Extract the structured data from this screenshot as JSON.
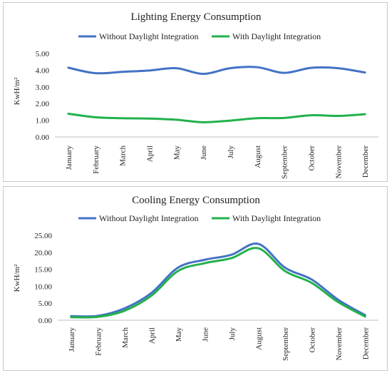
{
  "chart_data": [
    {
      "type": "line",
      "title": "Lighting Energy Consumption",
      "ylabel": "KwH/m²",
      "xlabel": "",
      "ylim": [
        0,
        5
      ],
      "yticks": [
        "0.00",
        "1.00",
        "2.00",
        "3.00",
        "4.00",
        "5.00"
      ],
      "grid": false,
      "legend": "top",
      "categories": [
        "January",
        "February",
        "March",
        "April",
        "May",
        "June",
        "July",
        "August",
        "September",
        "October",
        "November",
        "December"
      ],
      "series": [
        {
          "name": "Without Daylight Integration",
          "color": "#4472C4",
          "values": [
            4.15,
            3.82,
            3.9,
            3.98,
            4.12,
            3.78,
            4.12,
            4.18,
            3.84,
            4.14,
            4.12,
            3.86
          ]
        },
        {
          "name": "With Daylight Integration",
          "color": "#22B14C",
          "values": [
            1.39,
            1.18,
            1.12,
            1.1,
            1.03,
            0.88,
            0.98,
            1.12,
            1.14,
            1.3,
            1.26,
            1.36
          ]
        }
      ]
    },
    {
      "type": "line",
      "title": "Cooling Energy Consumption",
      "ylabel": "KwH/m²",
      "xlabel": "",
      "ylim": [
        0,
        25
      ],
      "yticks": [
        "0.00",
        "5.00",
        "10.00",
        "15.00",
        "20.00",
        "25.00"
      ],
      "grid": false,
      "legend": "top",
      "categories": [
        "January",
        "February",
        "March",
        "April",
        "May",
        "June",
        "July",
        "August",
        "September",
        "October",
        "November",
        "December"
      ],
      "series": [
        {
          "name": "Without Daylight Integration",
          "color": "#4472C4",
          "values": [
            1.2,
            1.3,
            3.5,
            8.0,
            15.5,
            17.8,
            19.3,
            22.5,
            15.5,
            12.0,
            6.0,
            1.5
          ]
        },
        {
          "name": "With Daylight Integration",
          "color": "#22B14C",
          "values": [
            0.9,
            1.0,
            2.8,
            7.2,
            14.5,
            16.8,
            18.3,
            21.2,
            14.5,
            11.0,
            5.3,
            1.1
          ]
        }
      ]
    }
  ]
}
